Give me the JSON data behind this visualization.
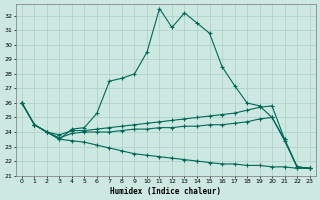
{
  "xlabel": "Humidex (Indice chaleur)",
  "background_color": "#cce8e0",
  "grid_color": "#aacfc8",
  "line_color": "#006858",
  "xlim": [
    -0.5,
    23.5
  ],
  "ylim": [
    21,
    32.8
  ],
  "yticks": [
    21,
    22,
    23,
    24,
    25,
    26,
    27,
    28,
    29,
    30,
    31,
    32
  ],
  "xticks": [
    0,
    1,
    2,
    3,
    4,
    5,
    6,
    7,
    8,
    9,
    10,
    11,
    12,
    13,
    14,
    15,
    16,
    17,
    18,
    19,
    20,
    21,
    22,
    23
  ],
  "line1_y": [
    26.0,
    24.5,
    24.0,
    23.5,
    24.2,
    24.3,
    25.3,
    27.5,
    27.7,
    28.0,
    29.5,
    32.5,
    31.2,
    32.2,
    31.5,
    30.8,
    28.5,
    27.2,
    26.0,
    25.8,
    25.0,
    23.5,
    21.6,
    21.5
  ],
  "line2_y": [
    26.0,
    24.5,
    24.0,
    23.8,
    24.1,
    24.1,
    24.2,
    24.3,
    24.4,
    24.5,
    24.6,
    24.7,
    24.8,
    24.9,
    25.0,
    25.1,
    25.2,
    25.3,
    25.5,
    25.7,
    25.8,
    23.5,
    21.6,
    21.5
  ],
  "line3_y": [
    26.0,
    24.5,
    24.0,
    23.6,
    23.9,
    24.0,
    24.0,
    24.0,
    24.1,
    24.2,
    24.2,
    24.3,
    24.3,
    24.4,
    24.4,
    24.5,
    24.5,
    24.6,
    24.7,
    24.9,
    25.0,
    23.4,
    21.6,
    21.5
  ],
  "line4_y": [
    26.0,
    24.5,
    24.0,
    23.5,
    23.4,
    23.3,
    23.1,
    22.9,
    22.7,
    22.5,
    22.4,
    22.3,
    22.2,
    22.1,
    22.0,
    21.9,
    21.8,
    21.8,
    21.7,
    21.7,
    21.6,
    21.6,
    21.5,
    21.5
  ]
}
